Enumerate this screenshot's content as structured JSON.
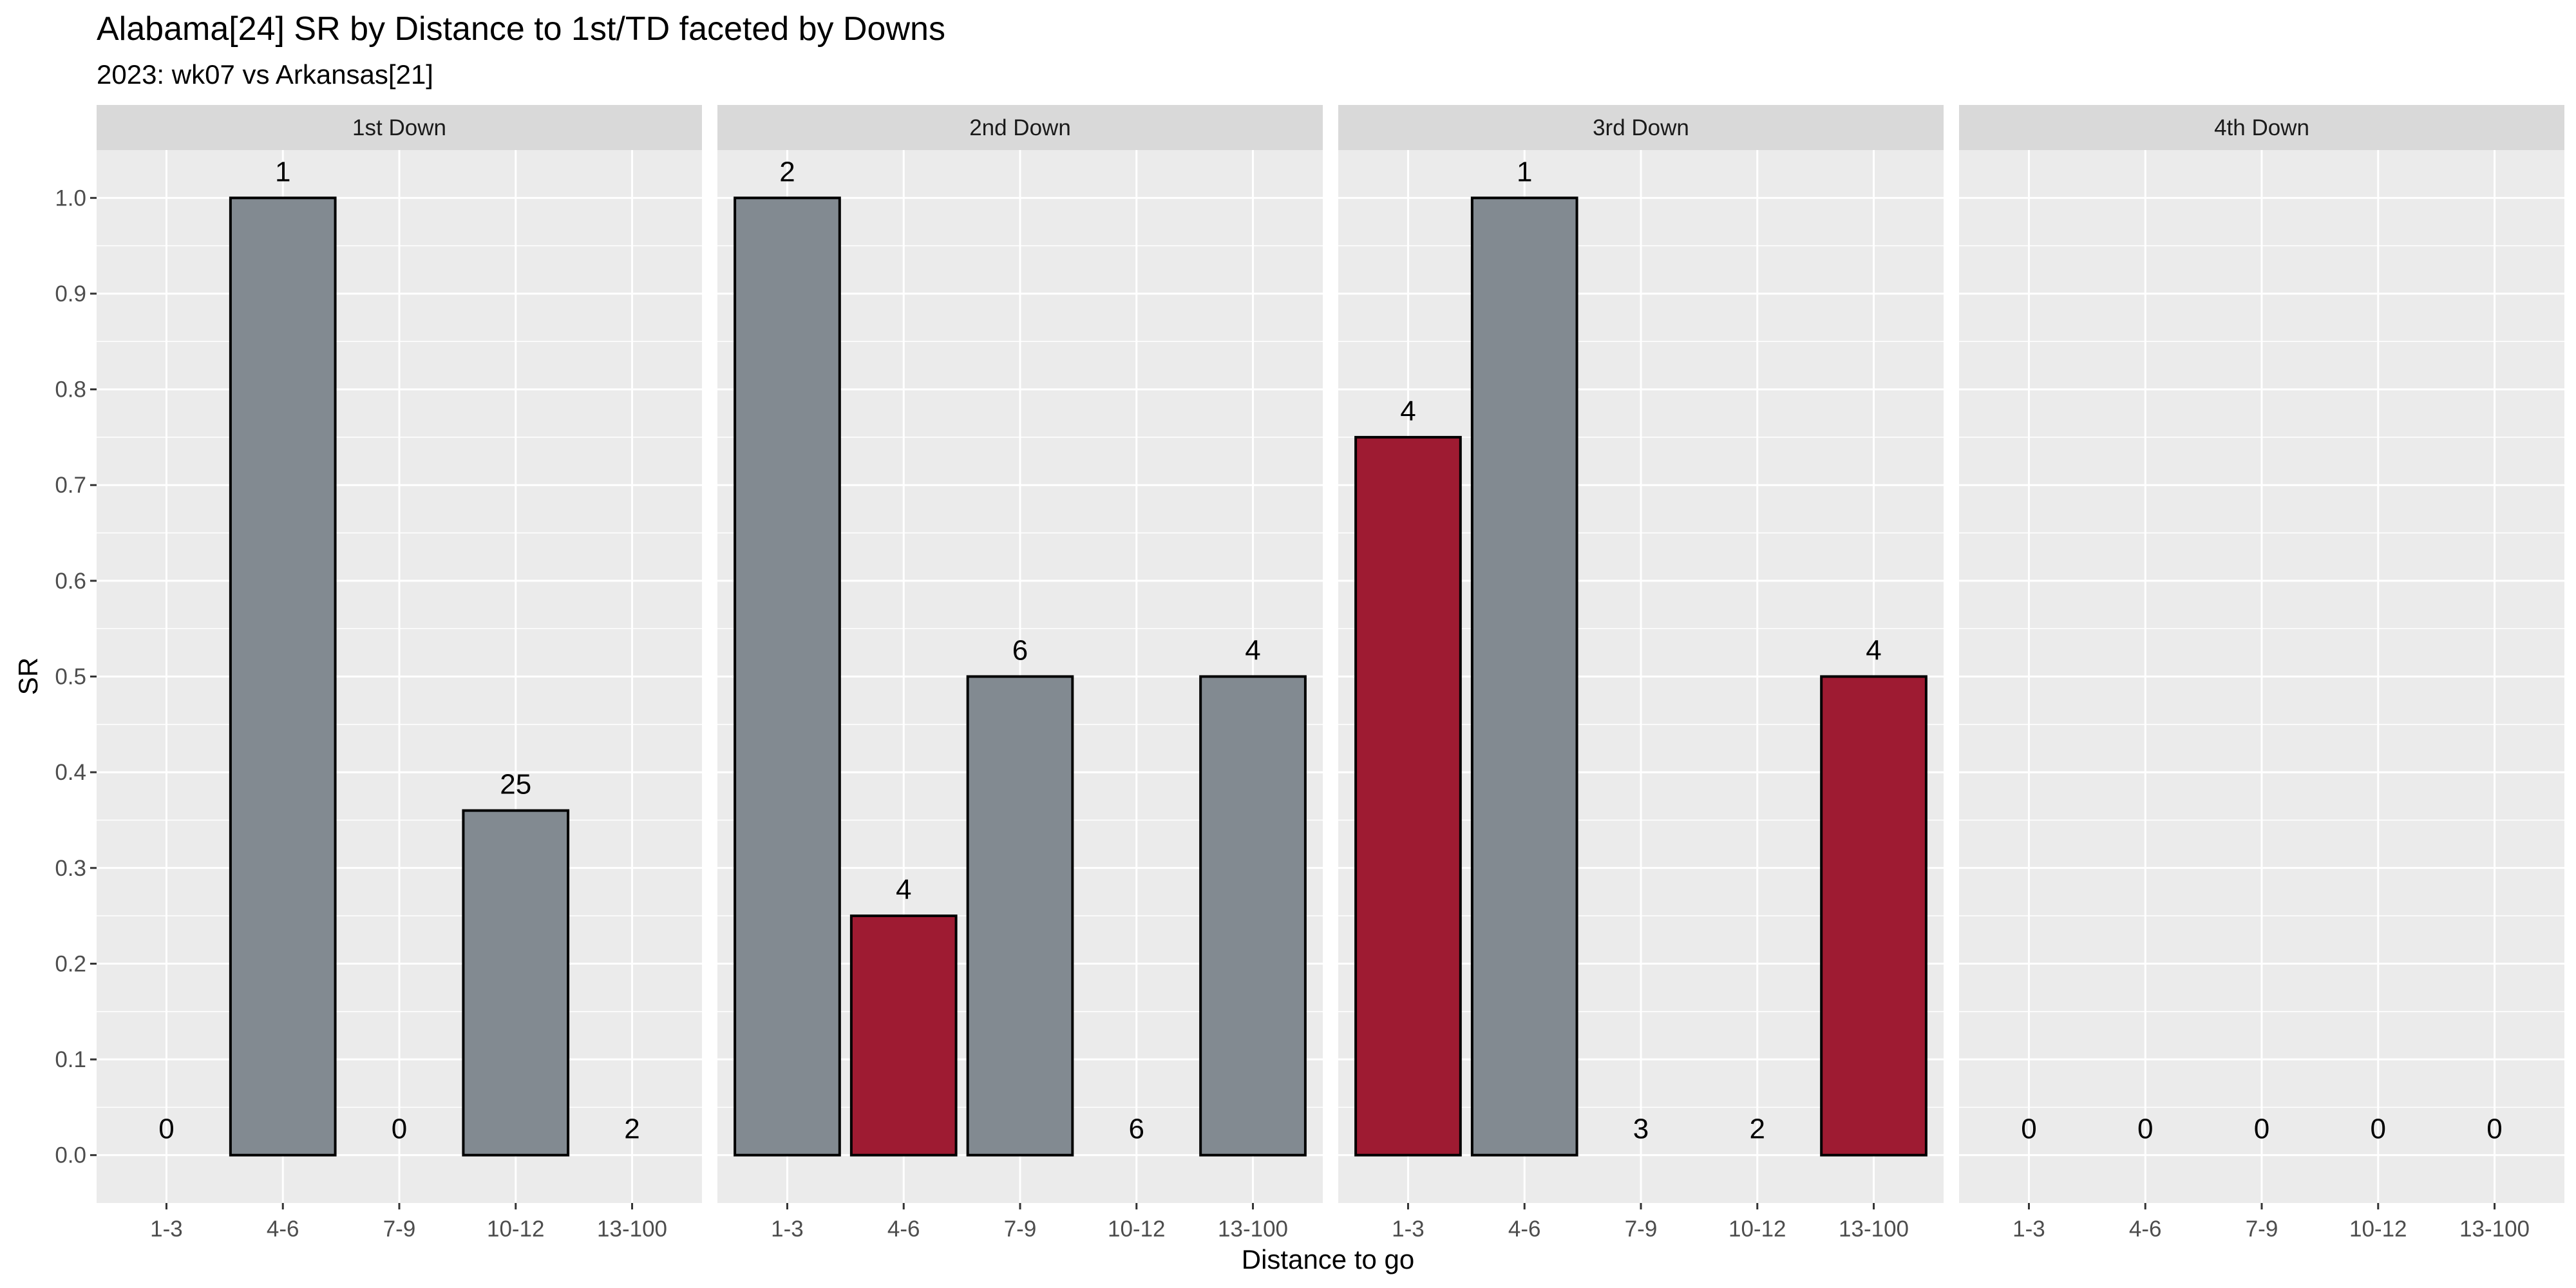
{
  "chart_data": {
    "type": "bar",
    "title": "Alabama[24] SR by Distance to 1st/TD faceted by Downs",
    "subtitle": "2023: wk07 vs Arkansas[21]",
    "xlabel": "Distance to go",
    "ylabel": "SR",
    "ylim": [
      -0.05,
      1.05
    ],
    "yticks": [
      "0.0",
      "0.1",
      "0.2",
      "0.3",
      "0.4",
      "0.5",
      "0.6",
      "0.7",
      "0.8",
      "0.9",
      "1.0"
    ],
    "categories": [
      "1-3",
      "4-6",
      "7-9",
      "10-12",
      "13-100"
    ],
    "grid": true,
    "colors": {
      "above_average": "#828a91",
      "below_average": "#9e1b32",
      "panel_background": "#ebebeb",
      "strip_background": "#d9d9d9",
      "bar_outline": "#000000"
    },
    "facets": [
      {
        "name": "1st Down",
        "bars": [
          {
            "category": "1-3",
            "value": 0,
            "count": "0",
            "color": "#828a91"
          },
          {
            "category": "4-6",
            "value": 1.0,
            "count": "1",
            "color": "#828a91"
          },
          {
            "category": "7-9",
            "value": 0,
            "count": "0",
            "color": "#828a91"
          },
          {
            "category": "10-12",
            "value": 0.36,
            "count": "25",
            "color": "#828a91"
          },
          {
            "category": "13-100",
            "value": 0,
            "count": "2",
            "color": "#828a91"
          }
        ]
      },
      {
        "name": "2nd Down",
        "bars": [
          {
            "category": "1-3",
            "value": 1.0,
            "count": "2",
            "color": "#828a91"
          },
          {
            "category": "4-6",
            "value": 0.25,
            "count": "4",
            "color": "#9e1b32"
          },
          {
            "category": "7-9",
            "value": 0.5,
            "count": "6",
            "color": "#828a91"
          },
          {
            "category": "10-12",
            "value": 0,
            "count": "6",
            "color": "#828a91"
          },
          {
            "category": "13-100",
            "value": 0.5,
            "count": "4",
            "color": "#828a91"
          }
        ]
      },
      {
        "name": "3rd Down",
        "bars": [
          {
            "category": "1-3",
            "value": 0.75,
            "count": "4",
            "color": "#9e1b32"
          },
          {
            "category": "4-6",
            "value": 1.0,
            "count": "1",
            "color": "#828a91"
          },
          {
            "category": "7-9",
            "value": 0,
            "count": "3",
            "color": "#828a91"
          },
          {
            "category": "10-12",
            "value": 0,
            "count": "2",
            "color": "#828a91"
          },
          {
            "category": "13-100",
            "value": 0.5,
            "count": "4",
            "color": "#9e1b32"
          }
        ]
      },
      {
        "name": "4th Down",
        "bars": [
          {
            "category": "1-3",
            "value": 0,
            "count": "0",
            "color": "#828a91"
          },
          {
            "category": "4-6",
            "value": 0,
            "count": "0",
            "color": "#828a91"
          },
          {
            "category": "7-9",
            "value": 0,
            "count": "0",
            "color": "#828a91"
          },
          {
            "category": "10-12",
            "value": 0,
            "count": "0",
            "color": "#828a91"
          },
          {
            "category": "13-100",
            "value": 0,
            "count": "0",
            "color": "#828a91"
          }
        ]
      }
    ]
  }
}
